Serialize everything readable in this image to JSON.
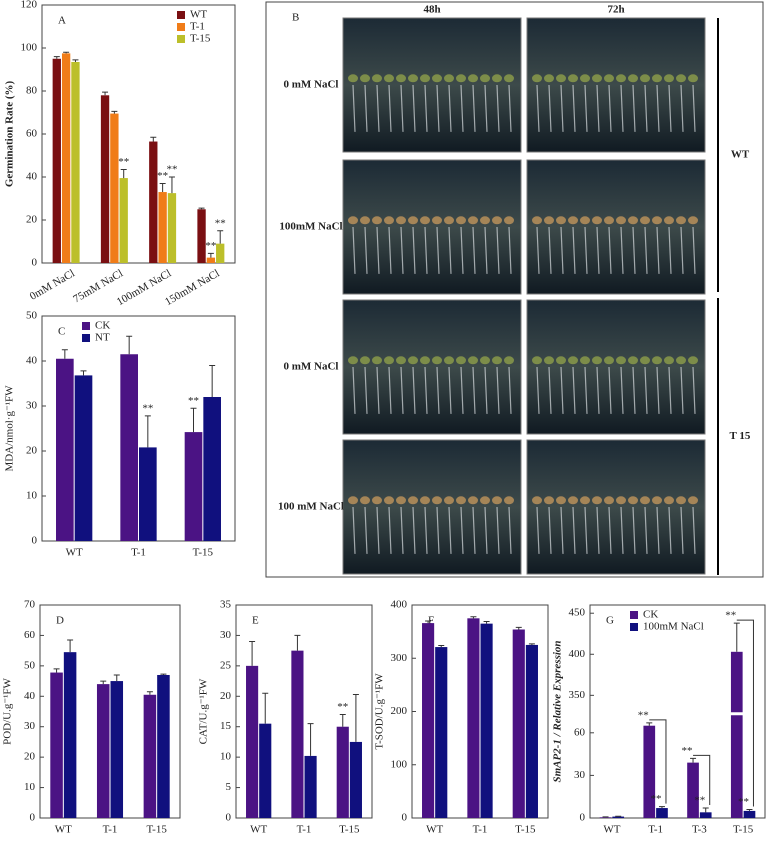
{
  "chart_data": [
    {
      "type": "bar",
      "panel": "A",
      "ylabel": "Germination Rate (%)",
      "categories": [
        "0mM NaCl",
        "75mM NaCl",
        "100mM NaCl",
        "150mM NaCl"
      ],
      "series": [
        {
          "name": "WT",
          "color": "#7a0f12",
          "values": [
            95,
            78,
            56.5,
            25
          ],
          "errors": [
            1,
            1.5,
            2,
            0.5
          ]
        },
        {
          "name": "T-1",
          "color": "#f07c18",
          "values": [
            97.5,
            69.5,
            33,
            2.5
          ],
          "errors": [
            0.5,
            1,
            4,
            2
          ]
        },
        {
          "name": "T-15",
          "color": "#bcbf2a",
          "values": [
            93.5,
            39.5,
            32.5,
            9
          ],
          "errors": [
            1,
            4,
            7.5,
            6
          ]
        }
      ],
      "ylim": [
        0,
        120
      ],
      "yticks": [
        0,
        20,
        40,
        60,
        80,
        100,
        120
      ],
      "legend": "upper right",
      "annotations": [
        {
          "text": "**",
          "series": 2,
          "category": 1
        },
        {
          "text": "**",
          "series": 1,
          "category": 2
        },
        {
          "text": "**",
          "series": 2,
          "category": 2
        },
        {
          "text": "**",
          "series": 1,
          "category": 3
        },
        {
          "text": "**",
          "series": 2,
          "category": 3
        }
      ]
    },
    {
      "type": "bar",
      "panel": "C",
      "ylabel": "MDA/nmol·g⁻¹FW",
      "categories": [
        "WT",
        "T-1",
        "T-15"
      ],
      "series": [
        {
          "name": "CK",
          "color": "#4b1384",
          "values": [
            40.5,
            41.5,
            24.2
          ],
          "errors": [
            2,
            4,
            5.3
          ]
        },
        {
          "name": "NT",
          "color": "#10107e",
          "values": [
            36.8,
            20.8,
            32
          ],
          "errors": [
            1,
            7,
            7
          ]
        }
      ],
      "ylim": [
        0,
        50
      ],
      "yticks": [
        0,
        10,
        20,
        30,
        40,
        50
      ],
      "legend": "upper left",
      "annotations": [
        {
          "text": "**",
          "series": 1,
          "category": 1
        },
        {
          "text": "**",
          "series": 0,
          "category": 2
        }
      ]
    },
    {
      "type": "bar",
      "panel": "D",
      "ylabel": "POD/U.g⁻¹FW",
      "categories": [
        "WT",
        "T-1",
        "T-15"
      ],
      "series": [
        {
          "color": "#4b1384",
          "values": [
            47.8,
            44,
            40.5
          ],
          "errors": [
            1.2,
            1,
            1
          ]
        },
        {
          "color": "#10107e",
          "values": [
            54.5,
            45,
            47
          ],
          "errors": [
            4,
            2,
            0.3
          ]
        }
      ],
      "ylim": [
        0,
        70
      ],
      "yticks": [
        0,
        10,
        20,
        30,
        40,
        50,
        60,
        70
      ],
      "annotations": []
    },
    {
      "type": "bar",
      "panel": "E",
      "ylabel": "CAT/U.g⁻¹FW",
      "categories": [
        "WT",
        "T-1",
        "T-15"
      ],
      "series": [
        {
          "color": "#4b1384",
          "values": [
            25,
            27.5,
            15
          ],
          "errors": [
            4,
            2.5,
            2
          ]
        },
        {
          "color": "#10107e",
          "values": [
            15.5,
            10.2,
            12.5
          ],
          "errors": [
            5,
            5.3,
            7.8
          ]
        }
      ],
      "ylim": [
        0,
        35
      ],
      "yticks": [
        0,
        5,
        10,
        15,
        20,
        25,
        30,
        35
      ],
      "annotations": [
        {
          "text": "**",
          "series": 0,
          "category": 2
        }
      ]
    },
    {
      "type": "bar",
      "panel": "F",
      "ylabel": "T-SOD/U.g⁻¹FW",
      "categories": [
        "WT",
        "T-1",
        "T-15"
      ],
      "series": [
        {
          "color": "#4b1384",
          "values": [
            366,
            375,
            354
          ],
          "errors": [
            4,
            3,
            4
          ]
        },
        {
          "color": "#10107e",
          "values": [
            321,
            365,
            325
          ],
          "errors": [
            3,
            4,
            2
          ]
        }
      ],
      "ylim": [
        0,
        400
      ],
      "yticks": [
        0,
        100,
        200,
        300,
        400
      ],
      "annotations": []
    },
    {
      "type": "bar",
      "panel": "G",
      "ylabel": "SmAP2-1 / Relative Expression",
      "categories": [
        "WT",
        "T-1",
        "T-3",
        "T-15"
      ],
      "series": [
        {
          "name": "CK",
          "color": "#4b1384",
          "values": [
            0.5,
            65,
            39,
            403
          ],
          "errors": [
            0.3,
            2,
            3,
            35
          ]
        },
        {
          "name": "100mM NaCl",
          "color": "#10107e",
          "values": [
            1,
            7,
            4,
            5
          ],
          "errors": [
            0.2,
            1,
            3,
            1
          ]
        }
      ],
      "ylim": [
        0,
        460
      ],
      "ybreak": [
        72,
        330
      ],
      "yticks": [
        0,
        30,
        60,
        350,
        400,
        450
      ],
      "legend": "upper left",
      "annotations": [
        {
          "text": "**",
          "series": 0,
          "category": 1
        },
        {
          "text": "**",
          "series": 1,
          "category": 1
        },
        {
          "text": "**",
          "series": 0,
          "category": 2
        },
        {
          "text": "**",
          "series": 1,
          "category": 2
        },
        {
          "text": "**",
          "series": 0,
          "category": 3
        },
        {
          "text": "**",
          "series": 1,
          "category": 3
        }
      ]
    }
  ],
  "photo_panel": {
    "panel": "B",
    "columns": [
      "48h",
      "72h"
    ],
    "rows": [
      "0 mM NaCl",
      "100mM NaCl",
      "0 mM NaCl",
      "100 mM NaCl"
    ],
    "groups": [
      "WT",
      "T 15"
    ]
  }
}
